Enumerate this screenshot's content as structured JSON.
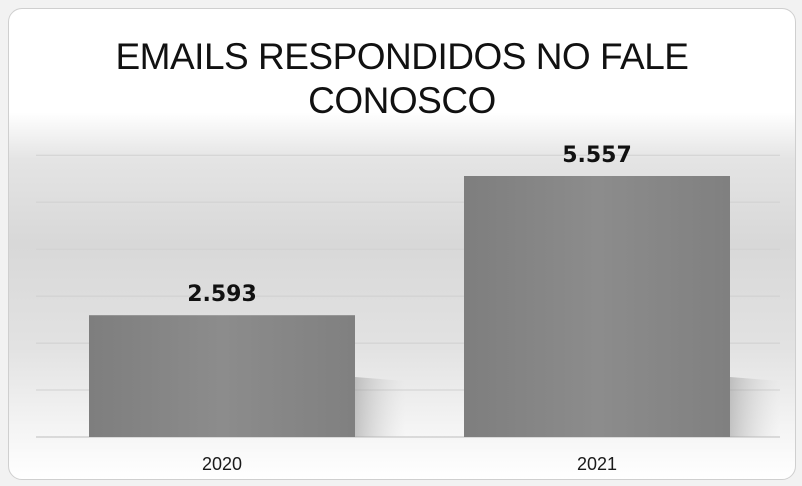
{
  "chart_data": {
    "type": "bar",
    "title": "EMAILS RESPONDIDOS NO FALE CONOSCO",
    "title_lines": [
      "EMAILS RESPONDIDOS NO FALE",
      "CONOSCO"
    ],
    "categories": [
      "2020",
      "2021"
    ],
    "values": [
      2593,
      5557
    ],
    "data_labels": [
      "2.593",
      "5.557"
    ],
    "xlabel": "",
    "ylabel": "",
    "ylim": [
      0,
      6000
    ],
    "grid": true,
    "legend": "none",
    "bar_color": "#8a8a8a"
  }
}
